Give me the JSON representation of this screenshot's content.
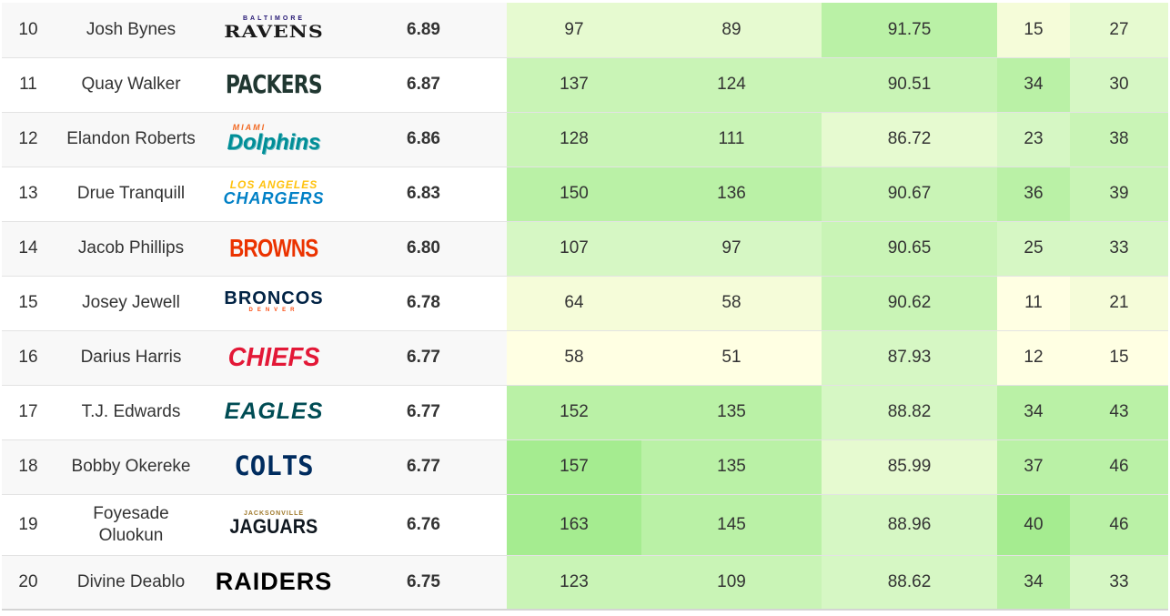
{
  "colors": {
    "heat_scale": [
      "#ffffe3",
      "#f5fcd9",
      "#e6fad0",
      "#d6f7c4",
      "#c9f4b6",
      "#baf1a6",
      "#a5ec90"
    ]
  },
  "rows": [
    {
      "rank": "10",
      "player": "Josh Bynes",
      "team": {
        "icon": "ravens-logo",
        "top": "BALTIMORE",
        "main": "RAVENS",
        "bottom": ""
      },
      "score": "6.89",
      "stats": [
        "97",
        "89",
        "91.75",
        "15",
        "27"
      ],
      "heat": [
        2,
        2,
        5,
        1,
        2
      ]
    },
    {
      "rank": "11",
      "player": "Quay Walker",
      "team": {
        "icon": "packers-logo",
        "top": "",
        "main": "PACKERS",
        "bottom": ""
      },
      "score": "6.87",
      "stats": [
        "137",
        "124",
        "90.51",
        "34",
        "30"
      ],
      "heat": [
        4,
        4,
        4,
        5,
        3
      ]
    },
    {
      "rank": "12",
      "player": "Elandon Roberts",
      "team": {
        "icon": "dolphins-logo",
        "top": "MIAMI",
        "main": "Dolphins",
        "bottom": ""
      },
      "score": "6.86",
      "stats": [
        "128",
        "111",
        "86.72",
        "23",
        "38"
      ],
      "heat": [
        4,
        4,
        2,
        3,
        4
      ]
    },
    {
      "rank": "13",
      "player": "Drue Tranquill",
      "team": {
        "icon": "chargers-logo",
        "top": "LOS ANGELES",
        "main": "CHARGERS",
        "bottom": ""
      },
      "score": "6.83",
      "stats": [
        "150",
        "136",
        "90.67",
        "36",
        "39"
      ],
      "heat": [
        5,
        5,
        4,
        5,
        4
      ]
    },
    {
      "rank": "14",
      "player": "Jacob Phillips",
      "team": {
        "icon": "browns-logo",
        "top": "",
        "main": "BROWNS",
        "bottom": ""
      },
      "score": "6.80",
      "stats": [
        "107",
        "97",
        "90.65",
        "25",
        "33"
      ],
      "heat": [
        3,
        3,
        4,
        3,
        3
      ]
    },
    {
      "rank": "15",
      "player": "Josey Jewell",
      "team": {
        "icon": "broncos-logo",
        "top": "",
        "main": "BRONCOS",
        "bottom": "DENVER"
      },
      "score": "6.78",
      "stats": [
        "64",
        "58",
        "90.62",
        "11",
        "21"
      ],
      "heat": [
        1,
        1,
        4,
        0,
        1
      ]
    },
    {
      "rank": "16",
      "player": "Darius Harris",
      "team": {
        "icon": "chiefs-logo",
        "top": "",
        "main": "CHIEFS",
        "bottom": ""
      },
      "score": "6.77",
      "stats": [
        "58",
        "51",
        "87.93",
        "12",
        "15"
      ],
      "heat": [
        0,
        0,
        3,
        0,
        0
      ]
    },
    {
      "rank": "17",
      "player": "T.J. Edwards",
      "team": {
        "icon": "eagles-logo",
        "top": "",
        "main": "EAGLES",
        "bottom": ""
      },
      "score": "6.77",
      "stats": [
        "152",
        "135",
        "88.82",
        "34",
        "43"
      ],
      "heat": [
        5,
        5,
        3,
        5,
        5
      ]
    },
    {
      "rank": "18",
      "player": "Bobby Okereke",
      "team": {
        "icon": "colts-logo",
        "top": "",
        "main": "COLTS",
        "bottom": ""
      },
      "score": "6.77",
      "stats": [
        "157",
        "135",
        "85.99",
        "37",
        "46"
      ],
      "heat": [
        6,
        5,
        2,
        5,
        5
      ]
    },
    {
      "rank": "19",
      "player": "Foyesade Oluokun",
      "team": {
        "icon": "jaguars-logo",
        "top": "JACKSONVILLE",
        "main": "JAGUARS",
        "bottom": ""
      },
      "score": "6.76",
      "stats": [
        "163",
        "145",
        "88.96",
        "40",
        "46"
      ],
      "heat": [
        6,
        5,
        3,
        6,
        5
      ]
    },
    {
      "rank": "20",
      "player": "Divine Deablo",
      "team": {
        "icon": "raiders-logo",
        "top": "",
        "main": "RAIDERS",
        "bottom": ""
      },
      "score": "6.75",
      "stats": [
        "123",
        "109",
        "88.62",
        "34",
        "33"
      ],
      "heat": [
        4,
        4,
        3,
        5,
        3
      ]
    }
  ]
}
